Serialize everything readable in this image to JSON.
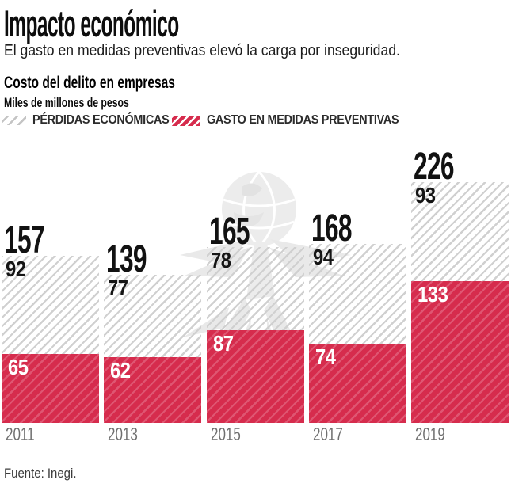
{
  "header": {
    "title": "Impacto económico",
    "subtitle": "El gasto en medidas preventivas elevó la carga por inseguridad.",
    "chart_title": "Costo del delito en empresas",
    "units": "Miles de millones de pesos"
  },
  "legend": {
    "losses_label": "PÉRDIDAS ECONÓMICAS",
    "spend_label": "GASTO EN MEDIDAS PREVENTIVAS"
  },
  "colors": {
    "accent_red": "#d62c4d",
    "red_stripe": "#df5672",
    "hatch_line": "#d0d0d0",
    "year_label_gray": "#6f6f6f"
  },
  "source": "Fuente: Inegi.",
  "watermark": "eagle-globe-logo",
  "chart_data": {
    "type": "bar",
    "stacked": true,
    "title": "Costo del delito en empresas",
    "ylabel": "Miles de millones de pesos",
    "categories": [
      "2011",
      "2013",
      "2015",
      "2017",
      "2019"
    ],
    "series": [
      {
        "name": "GASTO EN MEDIDAS PREVENTIVAS",
        "values": [
          65,
          62,
          87,
          74,
          133
        ]
      },
      {
        "name": "PÉRDIDAS ECONÓMICAS",
        "values": [
          92,
          77,
          78,
          94,
          93
        ]
      }
    ],
    "totals": [
      157,
      139,
      165,
      168,
      226
    ],
    "ylim": [
      0,
      230
    ],
    "legend_position": "top",
    "grid": false
  }
}
